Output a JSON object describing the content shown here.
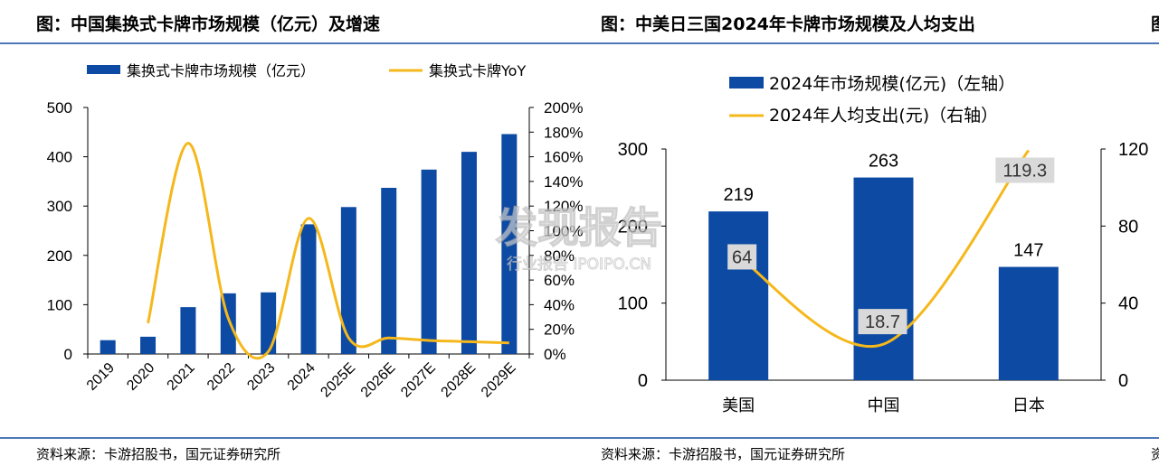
{
  "page": {
    "title_left": "图：中国集换式卡牌市场规模（亿元）及增速",
    "title_right": "图：中美日三国2024年卡牌市场规模及人均支出",
    "title_edge": "图",
    "source_left": "资料来源：卡游招股书，国元证券研究所",
    "source_right": "资料来源：卡游招股书，国元证券研究所",
    "source_edge": "资",
    "watermark_main": "发现报告",
    "watermark_sub": "行业报告 IPOIPO.CN",
    "colors": {
      "rule": "#4f77b7",
      "bar": "#0d4aa3",
      "line": "#f5b81c",
      "label_bg": "#d9d9d9"
    }
  },
  "chart_data": [
    {
      "type": "bar+line",
      "legend": [
        "集换式卡牌市场规模（亿元）",
        "集换式卡牌YoY"
      ],
      "legend_placement": "top",
      "categories": [
        "2019",
        "2020",
        "2021",
        "2022",
        "2023",
        "2024",
        "2025E",
        "2026E",
        "2027E",
        "2028E",
        "2029E"
      ],
      "series": [
        {
          "name": "集换式卡牌市场规模（亿元）",
          "type": "bar",
          "axis": "left",
          "values": [
            28,
            35,
            95,
            123,
            125,
            263,
            298,
            337,
            374,
            410,
            446
          ]
        },
        {
          "name": "集换式卡牌YoY",
          "type": "line",
          "axis": "right",
          "values": [
            null,
            25,
            171,
            29,
            2,
            110,
            13,
            13,
            11,
            10,
            9
          ]
        }
      ],
      "left_axis": {
        "min": 0,
        "max": 500,
        "ticks": [
          "0",
          "100",
          "200",
          "300",
          "400",
          "500"
        ]
      },
      "right_axis": {
        "min": 0,
        "max": 200,
        "ticks": [
          "0%",
          "20%",
          "40%",
          "60%",
          "80%",
          "100%",
          "120%",
          "140%",
          "160%",
          "180%",
          "200%"
        ]
      },
      "grid": false
    },
    {
      "type": "bar+line",
      "legend": [
        "2024年市场规模(亿元)（左轴）",
        "2024年人均支出(元)（右轴）"
      ],
      "legend_placement": "top-left",
      "categories": [
        "美国",
        "中国",
        "日本"
      ],
      "series": [
        {
          "name": "2024年市场规模(亿元)（左轴）",
          "type": "bar",
          "axis": "left",
          "values": [
            219,
            263,
            147
          ],
          "labels": [
            "219",
            "263",
            "147"
          ]
        },
        {
          "name": "2024年人均支出(元)（右轴）",
          "type": "line",
          "axis": "right",
          "values": [
            64,
            18.7,
            119.3
          ],
          "labels": [
            "64",
            "18.7",
            "119.3"
          ]
        }
      ],
      "left_axis": {
        "min": 0,
        "max": 300,
        "ticks": [
          "0",
          "100",
          "200",
          "300"
        ]
      },
      "right_axis": {
        "min": 0,
        "max": 120,
        "ticks": [
          "0",
          "40",
          "80",
          "120"
        ]
      },
      "grid": false
    }
  ]
}
